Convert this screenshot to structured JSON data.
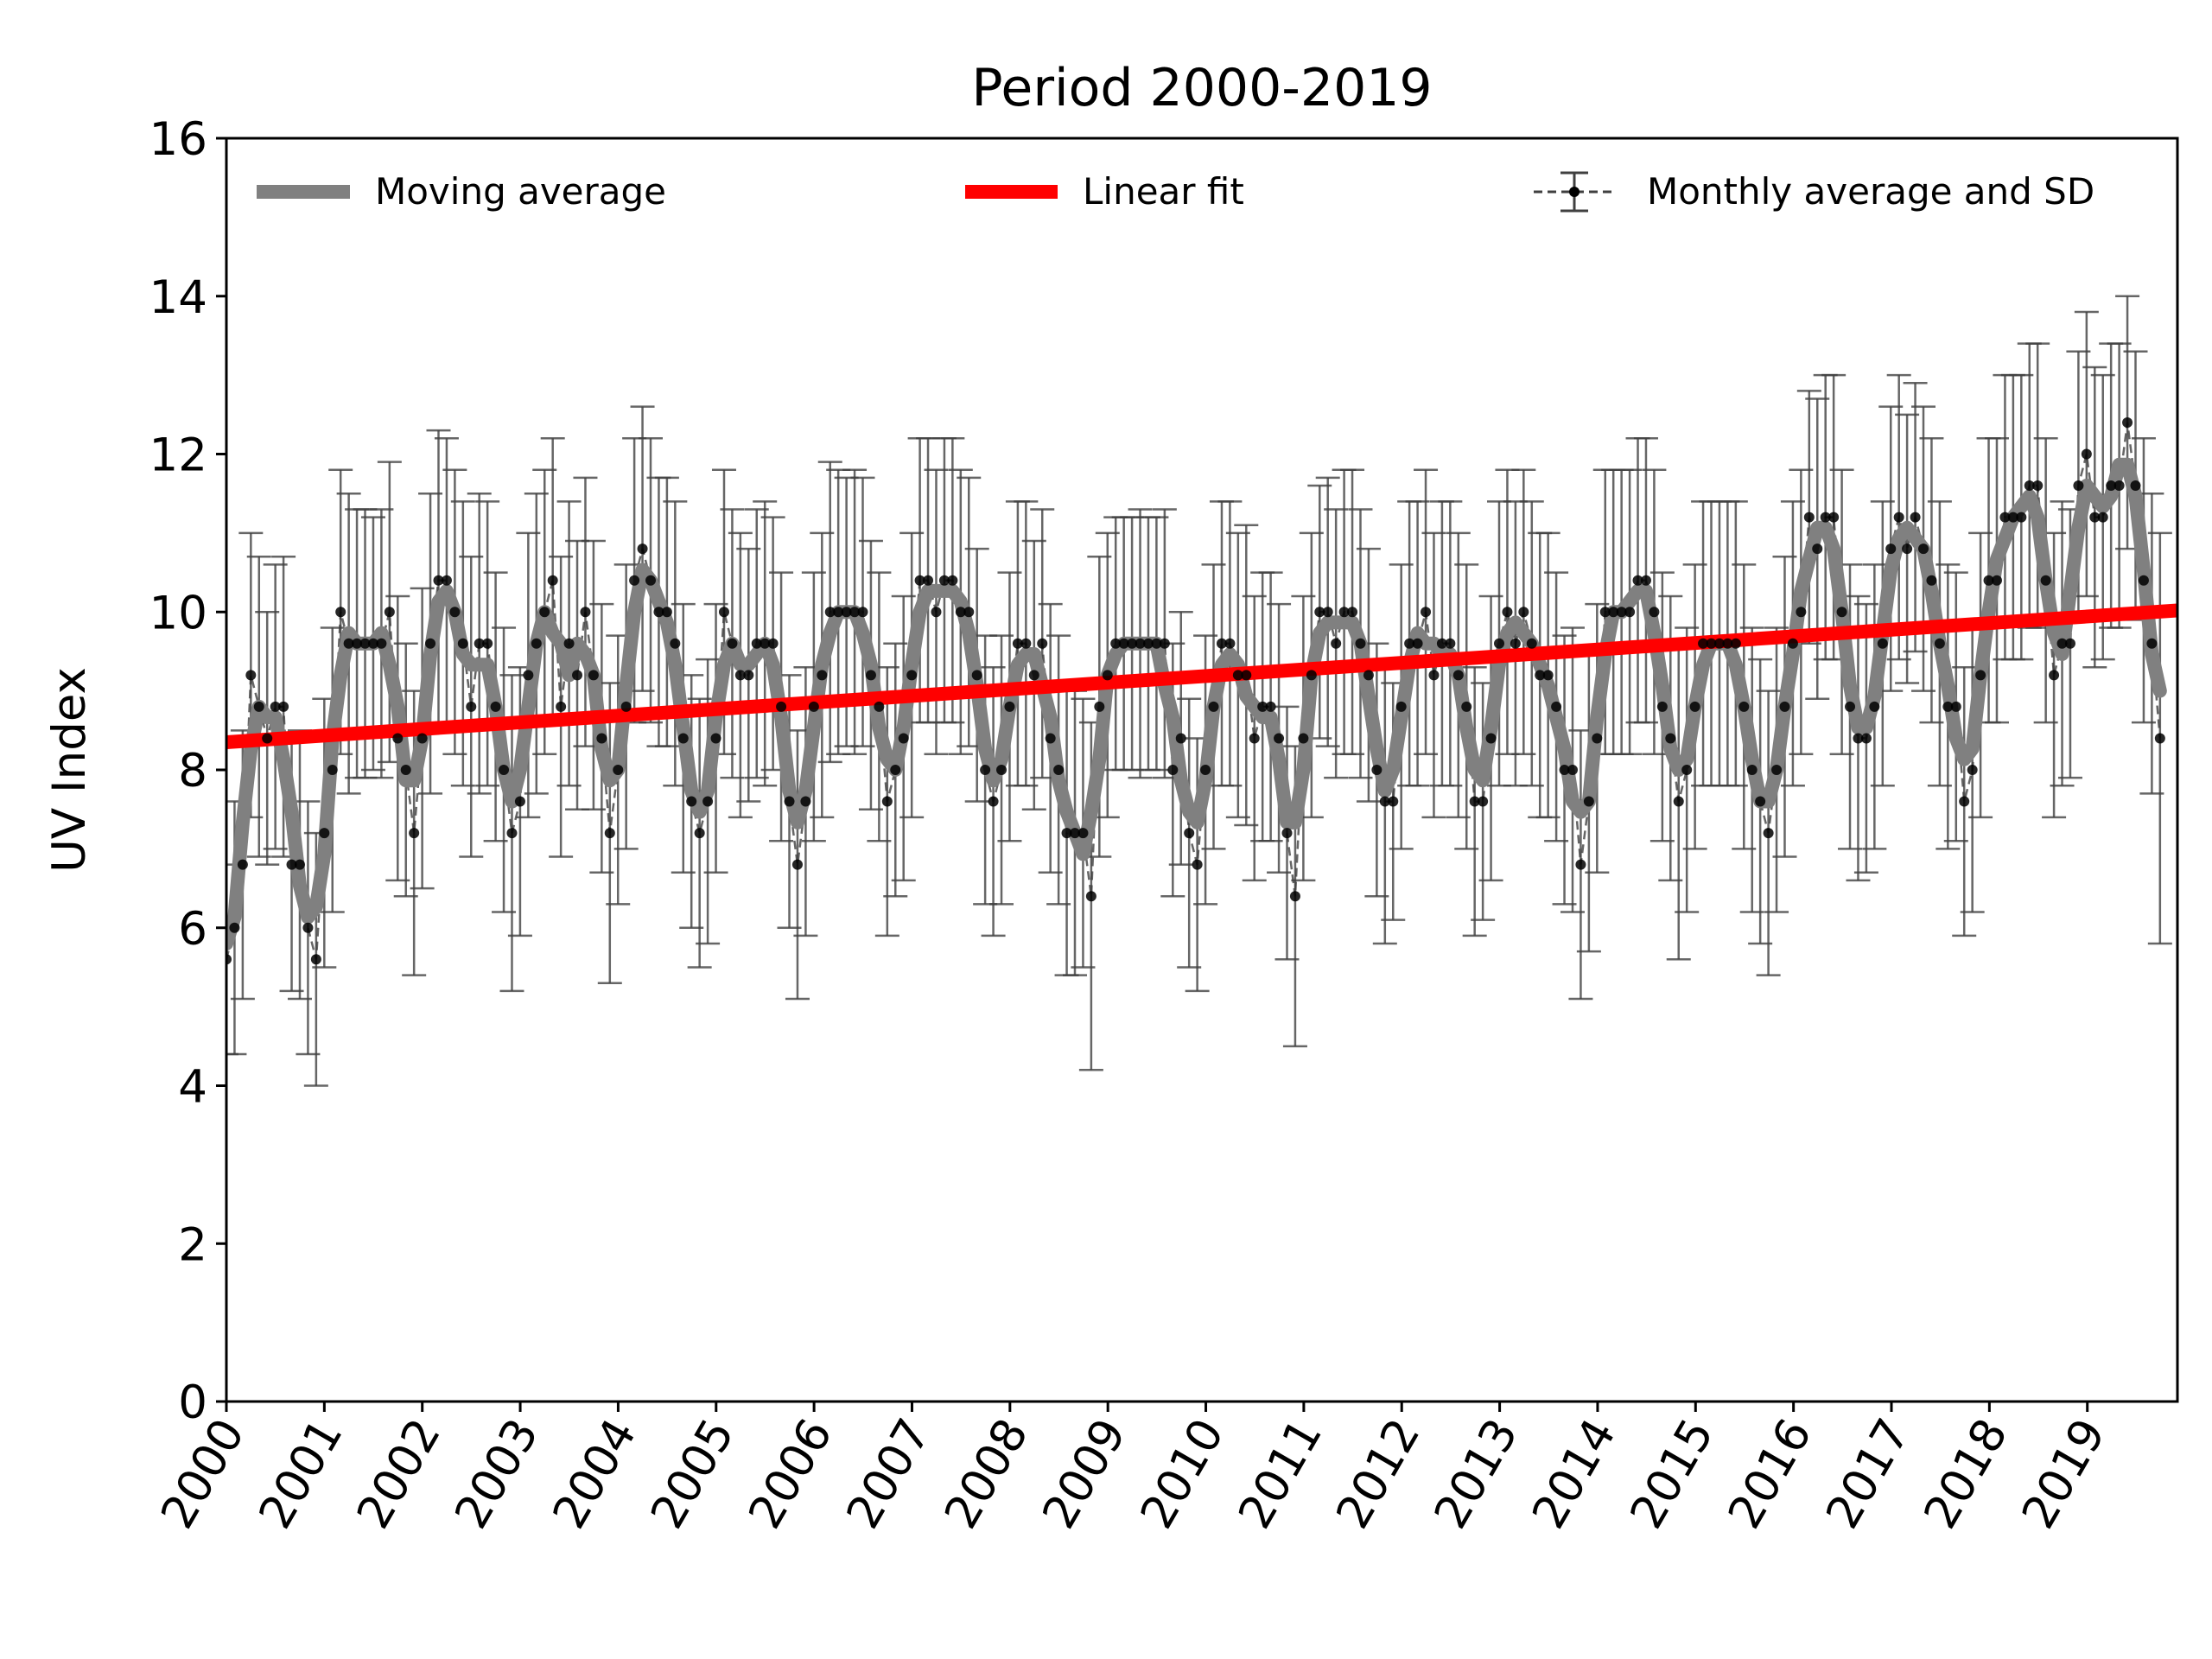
{
  "chart_data": {
    "type": "line",
    "title": "Period 2000-2019",
    "xlabel": "",
    "ylabel": "UV Index",
    "xlim": [
      2000,
      2019.92
    ],
    "ylim": [
      0,
      16
    ],
    "yticks": [
      0,
      2,
      4,
      6,
      8,
      10,
      12,
      14,
      16
    ],
    "xticks": [
      "2000",
      "2001",
      "2002",
      "2003",
      "2004",
      "2005",
      "2006",
      "2007",
      "2008",
      "2009",
      "2010",
      "2011",
      "2012",
      "2013",
      "2014",
      "2015",
      "2016",
      "2017",
      "2018",
      "2019"
    ],
    "legend": {
      "position": "top",
      "entries": [
        "Moving average",
        "Linear fit",
        "Monthly average and SD"
      ]
    },
    "linear_fit": {
      "x": [
        2000,
        2019.92
      ],
      "y": [
        8.35,
        10.02
      ],
      "color": "#ff0000"
    },
    "colors": {
      "moving_average": "#808080",
      "linear_fit": "#ff0000",
      "monthly": "#000000"
    },
    "monthly": {
      "start_year": 2000,
      "step_years": 0.0833,
      "values": [
        5.6,
        6.0,
        6.8,
        9.2,
        8.8,
        8.4,
        8.8,
        8.8,
        6.8,
        6.8,
        6.0,
        5.6,
        7.2,
        8.0,
        10.0,
        9.6,
        9.6,
        9.6,
        9.6,
        9.6,
        10.0,
        8.4,
        8.0,
        7.2,
        8.4,
        9.6,
        10.4,
        10.4,
        10.0,
        9.6,
        8.8,
        9.6,
        9.6,
        8.8,
        8.0,
        7.2,
        7.6,
        9.2,
        9.6,
        10.0,
        10.4,
        8.8,
        9.6,
        9.2,
        10.0,
        9.2,
        8.4,
        7.2,
        8.0,
        8.8,
        10.4,
        10.8,
        10.4,
        10.0,
        10.0,
        9.6,
        8.4,
        7.6,
        7.2,
        7.6,
        8.4,
        10.0,
        9.6,
        9.2,
        9.2,
        9.6,
        9.6,
        9.6,
        8.8,
        7.6,
        6.8,
        7.6,
        8.8,
        9.2,
        10.0,
        10.0,
        10.0,
        10.0,
        10.0,
        9.2,
        8.8,
        7.6,
        8.0,
        8.4,
        9.2,
        10.4,
        10.4,
        10.0,
        10.4,
        10.4,
        10.0,
        10.0,
        9.2,
        8.0,
        7.6,
        8.0,
        8.8,
        9.6,
        9.6,
        9.2,
        9.6,
        8.4,
        8.0,
        7.2,
        7.2,
        7.2,
        6.4,
        8.8,
        9.2,
        9.6,
        9.6,
        9.6,
        9.6,
        9.6,
        9.6,
        9.6,
        8.0,
        8.4,
        7.2,
        6.8,
        8.0,
        8.8,
        9.6,
        9.6,
        9.2,
        9.2,
        8.4,
        8.8,
        8.8,
        8.4,
        7.2,
        6.4,
        8.4,
        9.2,
        10.0,
        10.0,
        9.6,
        10.0,
        10.0,
        9.6,
        9.2,
        8.0,
        7.6,
        7.6,
        8.8,
        9.6,
        9.6,
        10.0,
        9.2,
        9.6,
        9.6,
        9.2,
        8.8,
        7.6,
        7.6,
        8.4,
        9.6,
        10.0,
        9.6,
        10.0,
        9.6,
        9.2,
        9.2,
        8.8,
        8.0,
        8.0,
        6.8,
        7.6,
        8.4,
        10.0,
        10.0,
        10.0,
        10.0,
        10.4,
        10.4,
        10.0,
        8.8,
        8.4,
        7.6,
        8.0,
        8.8,
        9.6,
        9.6,
        9.6,
        9.6,
        9.6,
        8.8,
        8.0,
        7.6,
        7.2,
        8.0,
        8.8,
        9.6,
        10.0,
        11.2,
        10.8,
        11.2,
        11.2,
        10.0,
        8.8,
        8.4,
        8.4,
        8.8,
        9.6,
        10.8,
        11.2,
        10.8,
        11.2,
        10.8,
        10.4,
        9.6,
        8.8,
        8.8,
        7.6,
        8.0,
        9.2,
        10.4,
        10.4,
        11.2,
        11.2,
        11.2,
        11.6,
        11.6,
        10.4,
        9.2,
        9.6,
        9.6,
        11.6,
        12.0,
        11.2,
        11.2,
        11.6,
        11.6,
        12.4,
        11.6,
        10.4,
        9.6,
        8.4
      ],
      "sd": [
        1.2,
        1.6,
        1.7,
        1.8,
        1.9,
        1.6,
        1.8,
        1.9,
        1.6,
        1.7,
        1.6,
        1.6,
        1.7,
        1.8,
        1.8,
        1.9,
        1.7,
        1.7,
        1.6,
        1.7,
        1.9,
        1.8,
        1.6,
        1.8,
        1.9,
        1.9,
        1.9,
        1.8,
        1.8,
        1.8,
        1.9,
        1.9,
        1.8,
        1.7,
        1.8,
        2.0,
        1.7,
        1.8,
        1.9,
        1.8,
        1.8,
        1.9,
        1.8,
        1.7,
        1.7,
        1.7,
        1.7,
        1.9,
        1.7,
        1.8,
        1.8,
        1.8,
        1.8,
        1.7,
        1.7,
        1.8,
        1.7,
        1.6,
        1.7,
        1.8,
        1.7,
        1.8,
        1.7,
        1.8,
        1.6,
        1.7,
        1.8,
        1.6,
        1.7,
        1.6,
        1.7,
        1.7,
        1.7,
        1.8,
        1.9,
        1.8,
        1.7,
        1.8,
        1.7,
        1.7,
        1.7,
        1.7,
        1.6,
        1.8,
        1.8,
        1.8,
        1.8,
        1.8,
        1.8,
        1.8,
        1.8,
        1.7,
        1.6,
        1.7,
        1.7,
        1.7,
        1.7,
        1.8,
        1.8,
        1.7,
        1.7,
        1.7,
        1.7,
        1.8,
        1.8,
        1.7,
        2.2,
        1.9,
        1.8,
        1.6,
        1.6,
        1.6,
        1.7,
        1.6,
        1.6,
        1.7,
        1.6,
        1.6,
        1.7,
        1.6,
        1.7,
        1.8,
        1.8,
        1.8,
        1.8,
        1.9,
        1.8,
        1.7,
        1.7,
        1.7,
        1.6,
        1.9,
        1.8,
        1.8,
        1.6,
        1.7,
        1.7,
        1.8,
        1.8,
        1.7,
        1.6,
        1.6,
        1.8,
        1.5,
        1.8,
        1.8,
        1.8,
        1.8,
        1.8,
        1.8,
        1.8,
        1.8,
        1.8,
        1.7,
        1.5,
        1.8,
        1.8,
        1.8,
        1.8,
        1.8,
        1.8,
        1.8,
        1.8,
        1.7,
        1.7,
        1.8,
        1.7,
        1.9,
        1.7,
        1.8,
        1.8,
        1.8,
        1.8,
        1.8,
        1.8,
        1.8,
        1.7,
        1.8,
        2.0,
        1.8,
        1.8,
        1.8,
        1.8,
        1.8,
        1.8,
        1.8,
        1.8,
        1.8,
        1.8,
        1.8,
        1.8,
        1.9,
        1.8,
        1.8,
        1.6,
        1.9,
        1.8,
        1.8,
        1.8,
        1.8,
        1.8,
        1.7,
        1.8,
        1.8,
        1.8,
        1.8,
        1.7,
        1.7,
        1.8,
        1.8,
        1.8,
        1.8,
        1.7,
        1.7,
        1.8,
        1.8,
        1.8,
        1.8,
        1.8,
        1.8,
        1.8,
        1.8,
        1.8,
        1.8,
        1.8,
        1.8,
        1.7,
        1.7,
        1.8,
        1.9,
        1.8,
        1.8,
        1.8,
        1.6,
        1.7,
        1.8,
        1.9,
        2.6
      ]
    }
  }
}
